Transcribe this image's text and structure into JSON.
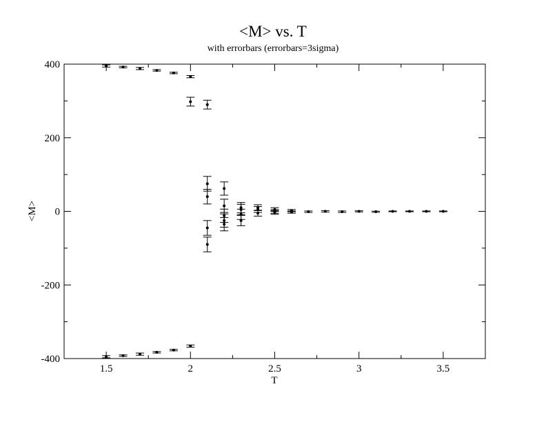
{
  "chart_data": {
    "type": "scatter",
    "title": "<M> vs. T",
    "subtitle": "with errorbars (errorbars=3sigma)",
    "xlabel": "T",
    "ylabel": "<M>",
    "xlim": [
      1.25,
      3.75
    ],
    "ylim": [
      -400,
      400
    ],
    "x_ticks": [
      1.5,
      2,
      2.5,
      3,
      3.5
    ],
    "x_tick_labels": [
      "1.5",
      "2",
      "2.5",
      "3",
      "3.5"
    ],
    "y_ticks": [
      -400,
      -200,
      0,
      200,
      400
    ],
    "y_tick_labels": [
      "-400",
      "-200",
      "0",
      "200",
      "400"
    ],
    "grid": false,
    "error_bar_sigma": 3,
    "points": [
      {
        "x": 1.5,
        "y": 395,
        "err": 3
      },
      {
        "x": 1.6,
        "y": 392,
        "err": 2
      },
      {
        "x": 1.7,
        "y": 388,
        "err": 3
      },
      {
        "x": 1.8,
        "y": 383,
        "err": 2
      },
      {
        "x": 1.9,
        "y": 376,
        "err": 2
      },
      {
        "x": 2.0,
        "y": 366,
        "err": 3
      },
      {
        "x": 2.0,
        "y": 298,
        "err": 12
      },
      {
        "x": 2.1,
        "y": 290,
        "err": 12
      },
      {
        "x": 2.1,
        "y": 75,
        "err": 20
      },
      {
        "x": 2.1,
        "y": 40,
        "err": 20
      },
      {
        "x": 2.1,
        "y": -45,
        "err": 20
      },
      {
        "x": 2.1,
        "y": -90,
        "err": 20
      },
      {
        "x": 2.2,
        "y": 62,
        "err": 18
      },
      {
        "x": 2.2,
        "y": 15,
        "err": 18
      },
      {
        "x": 2.2,
        "y": -12,
        "err": 18
      },
      {
        "x": 2.2,
        "y": -25,
        "err": 18
      },
      {
        "x": 2.2,
        "y": -35,
        "err": 18
      },
      {
        "x": 2.3,
        "y": 10,
        "err": 14
      },
      {
        "x": 2.3,
        "y": 5,
        "err": 14
      },
      {
        "x": 2.3,
        "y": -8,
        "err": 14
      },
      {
        "x": 2.3,
        "y": -25,
        "err": 14
      },
      {
        "x": 2.4,
        "y": 10,
        "err": 8
      },
      {
        "x": 2.4,
        "y": 5,
        "err": 8
      },
      {
        "x": 2.4,
        "y": -5,
        "err": 8
      },
      {
        "x": 2.5,
        "y": 5,
        "err": 5
      },
      {
        "x": 2.5,
        "y": 0,
        "err": 5
      },
      {
        "x": 2.5,
        "y": -3,
        "err": 5
      },
      {
        "x": 2.6,
        "y": 2,
        "err": 3
      },
      {
        "x": 2.6,
        "y": -2,
        "err": 3
      },
      {
        "x": 2.7,
        "y": -1,
        "err": 2
      },
      {
        "x": 2.8,
        "y": 0,
        "err": 2
      },
      {
        "x": 2.9,
        "y": -1,
        "err": 2
      },
      {
        "x": 3.0,
        "y": 0,
        "err": 1.5
      },
      {
        "x": 3.1,
        "y": -1,
        "err": 1.5
      },
      {
        "x": 3.2,
        "y": 0,
        "err": 1
      },
      {
        "x": 3.3,
        "y": 0,
        "err": 1
      },
      {
        "x": 3.4,
        "y": 0,
        "err": 1
      },
      {
        "x": 3.5,
        "y": 0,
        "err": 1
      },
      {
        "x": 1.5,
        "y": -395,
        "err": 3
      },
      {
        "x": 1.6,
        "y": -392,
        "err": 2
      },
      {
        "x": 1.7,
        "y": -388,
        "err": 3
      },
      {
        "x": 1.8,
        "y": -383,
        "err": 2
      },
      {
        "x": 1.9,
        "y": -377,
        "err": 2
      },
      {
        "x": 2.0,
        "y": -366,
        "err": 3
      }
    ]
  }
}
